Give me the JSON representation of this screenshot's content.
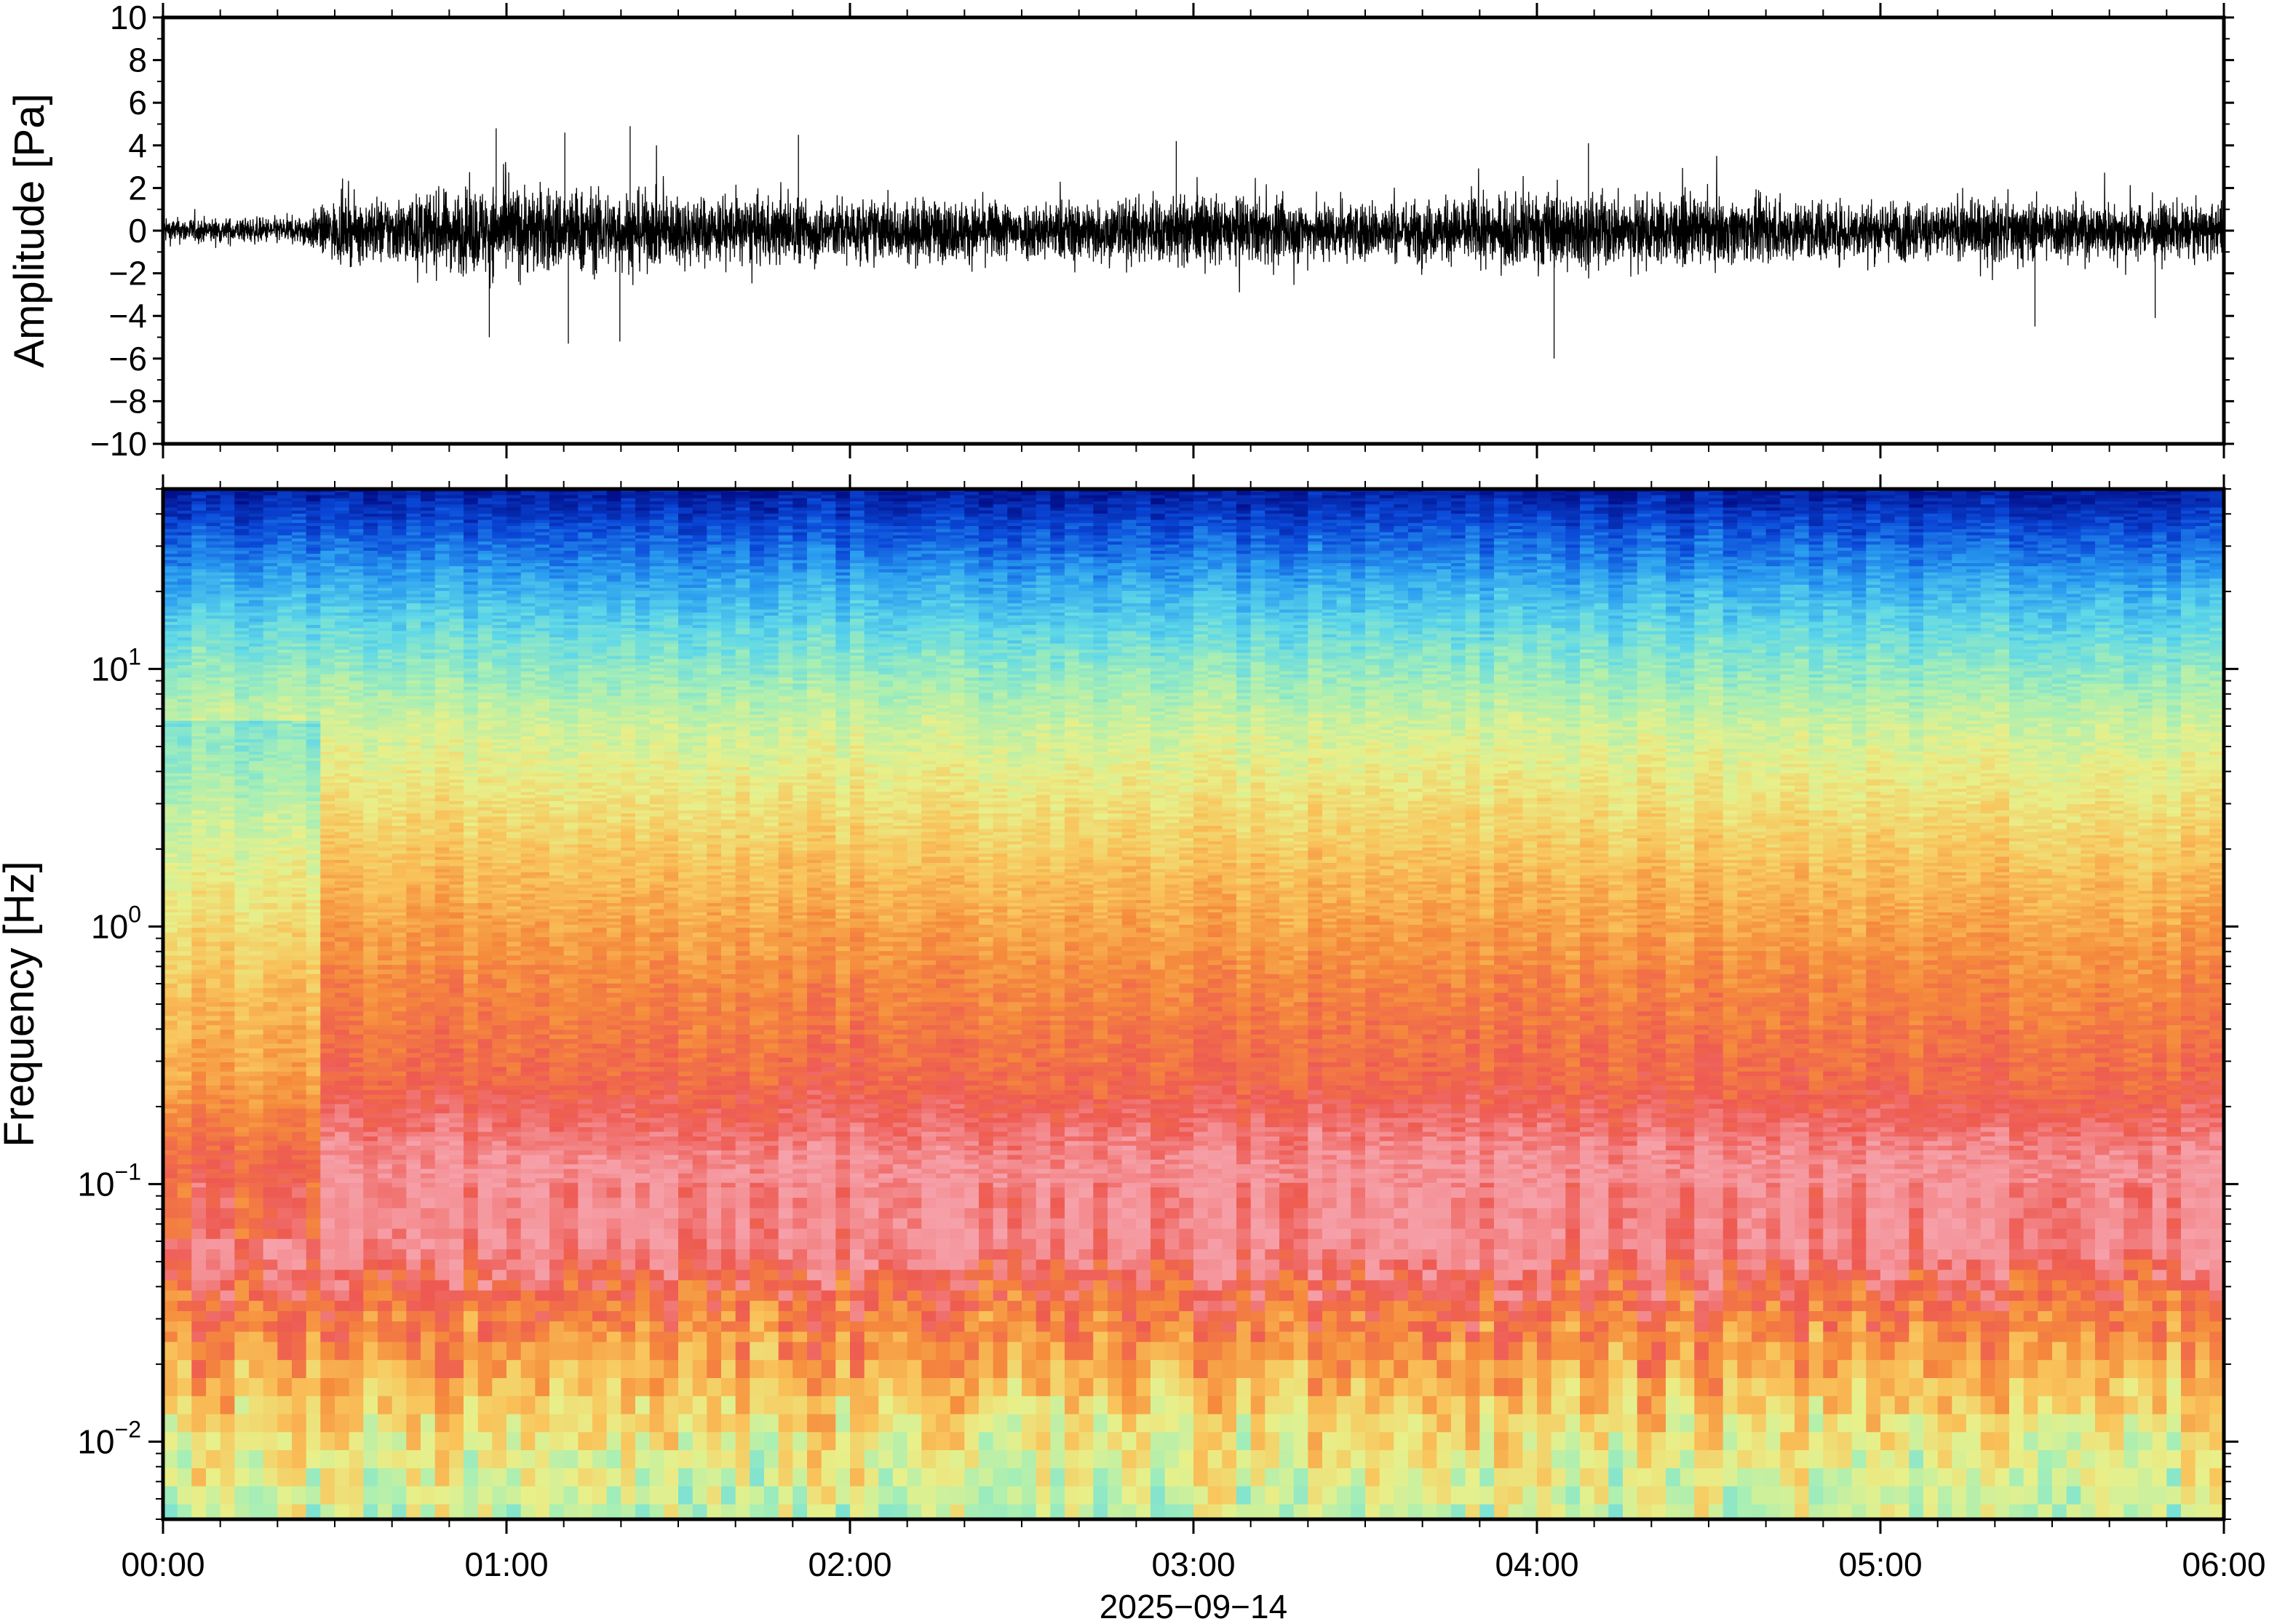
{
  "chart_data": [
    {
      "type": "line",
      "ylabel": "Amplitude [Pa]",
      "ylim": [
        -10,
        10
      ],
      "ytick_labels": [
        "10",
        "8",
        "6",
        "4",
        "2",
        "0",
        "−2",
        "−4",
        "−6",
        "−8",
        "−10"
      ],
      "ytick_values": [
        10,
        8,
        6,
        4,
        2,
        0,
        -2,
        -4,
        -6,
        -8,
        -10
      ],
      "xlim_hours": [
        0,
        6
      ],
      "grid": false,
      "series": [
        {
          "color": "#000000",
          "envelope_hours": [
            0,
            0.25,
            0.4,
            0.5,
            0.75,
            1.0,
            1.2,
            1.4,
            1.6,
            1.9,
            2.2,
            2.5,
            2.75,
            3.0,
            3.3,
            3.6,
            3.9,
            4.05,
            4.2,
            4.5,
            4.8,
            5.1,
            5.4,
            5.7,
            6.0
          ],
          "envelope_pa": [
            0.9,
            0.9,
            1.0,
            2.1,
            2.6,
            3.3,
            3.0,
            2.7,
            2.4,
            2.3,
            2.2,
            2.1,
            2.3,
            2.5,
            2.2,
            2.1,
            2.5,
            2.8,
            2.6,
            2.3,
            2.2,
            2.1,
            2.2,
            2.0,
            1.8
          ],
          "peaks": [
            {
              "hour": 0.97,
              "value": 4.8
            },
            {
              "hour": 1.17,
              "value": 4.6
            },
            {
              "hour": 1.36,
              "value": 4.9
            },
            {
              "hour": 1.85,
              "value": 4.5
            },
            {
              "hour": 2.95,
              "value": 4.2
            },
            {
              "hour": 4.15,
              "value": 4.1
            },
            {
              "hour": 4.05,
              "value": -6.0
            },
            {
              "hour": 1.33,
              "value": -5.2
            },
            {
              "hour": 0.95,
              "value": -5.0
            },
            {
              "hour": 1.18,
              "value": -5.3
            },
            {
              "hour": 5.45,
              "value": -4.5
            },
            {
              "hour": 5.8,
              "value": -4.1
            }
          ]
        }
      ]
    },
    {
      "type": "heatmap",
      "ylabel": "Frequency [Hz]",
      "yscale": "log",
      "ylim": [
        0.005,
        50
      ],
      "ytick_labels": [
        {
          "base": "10",
          "exp": "1"
        },
        {
          "base": "10",
          "exp": "0"
        },
        {
          "base": "10",
          "exp": "−1"
        },
        {
          "base": "10",
          "exp": "−2"
        }
      ],
      "ytick_values": [
        10,
        1,
        0.1,
        0.01
      ],
      "xlim_hours": [
        0,
        6
      ],
      "xtick_labels": [
        "00:00",
        "01:00",
        "02:00",
        "03:00",
        "04:00",
        "05:00",
        "06:00"
      ],
      "xtick_hours": [
        0,
        1,
        2,
        3,
        4,
        5,
        6
      ],
      "xlabel": "2025−09−14",
      "colormap": [
        "#02108c",
        "#0a48d8",
        "#2a9df0",
        "#5fd8e8",
        "#a8efb4",
        "#e8f08a",
        "#f9c35a",
        "#f58a3c",
        "#ee5a52",
        "#f6a1aa"
      ],
      "power_profile_note_free": true,
      "profile_freqs_hz": [
        50,
        35,
        20,
        12,
        6,
        3,
        1.5,
        0.6,
        0.25,
        0.12,
        0.06,
        0.035,
        0.02,
        0.01,
        0.005
      ],
      "profile_levels": [
        0.2,
        1.1,
        2.4,
        3.4,
        4.6,
        5.4,
        6.2,
        7.1,
        7.7,
        8.8,
        8.9,
        7.6,
        6.6,
        5.2,
        4.5
      ],
      "quiet_interval_hours": [
        0,
        0.45
      ]
    }
  ]
}
